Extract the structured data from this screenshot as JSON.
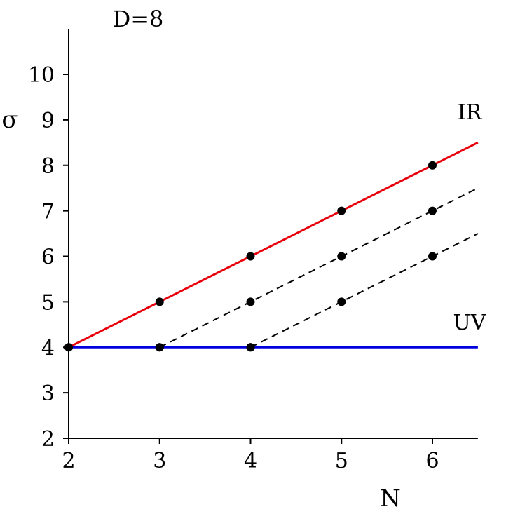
{
  "chart_data": {
    "type": "line",
    "title": "D=8",
    "xlabel": "N",
    "ylabel": "σ",
    "xlim": [
      2,
      6.5
    ],
    "ylim": [
      2,
      11
    ],
    "x_ticks": [
      "2",
      "3",
      "4",
      "5",
      "6"
    ],
    "y_ticks": [
      "2",
      "3",
      "4",
      "5",
      "6",
      "7",
      "8",
      "9",
      "10"
    ],
    "grid": false,
    "series": [
      {
        "name": "IR",
        "color": "#e8000b",
        "style": "solid",
        "line": [
          [
            2,
            4
          ],
          [
            6.5,
            8.5
          ]
        ],
        "points": [
          [
            2,
            4
          ],
          [
            3,
            5
          ],
          [
            4,
            6
          ],
          [
            5,
            7
          ],
          [
            6,
            8
          ]
        ]
      },
      {
        "name": "UV",
        "color": "#0000dd",
        "style": "solid",
        "line": [
          [
            2,
            4
          ],
          [
            6.5,
            4
          ]
        ],
        "points": [
          [
            2,
            4
          ],
          [
            3,
            4
          ],
          [
            4,
            4
          ]
        ]
      },
      {
        "color": "#000000",
        "style": "dashed",
        "line": [
          [
            3,
            4
          ],
          [
            6.5,
            7.5
          ]
        ],
        "points": [
          [
            3,
            4
          ],
          [
            4,
            5
          ],
          [
            5,
            6
          ],
          [
            6,
            7
          ]
        ]
      },
      {
        "color": "#000000",
        "style": "dashed",
        "line": [
          [
            4,
            4
          ],
          [
            6.5,
            6.5
          ]
        ],
        "points": [
          [
            4,
            4
          ],
          [
            5,
            5
          ],
          [
            6,
            6
          ]
        ]
      }
    ]
  }
}
